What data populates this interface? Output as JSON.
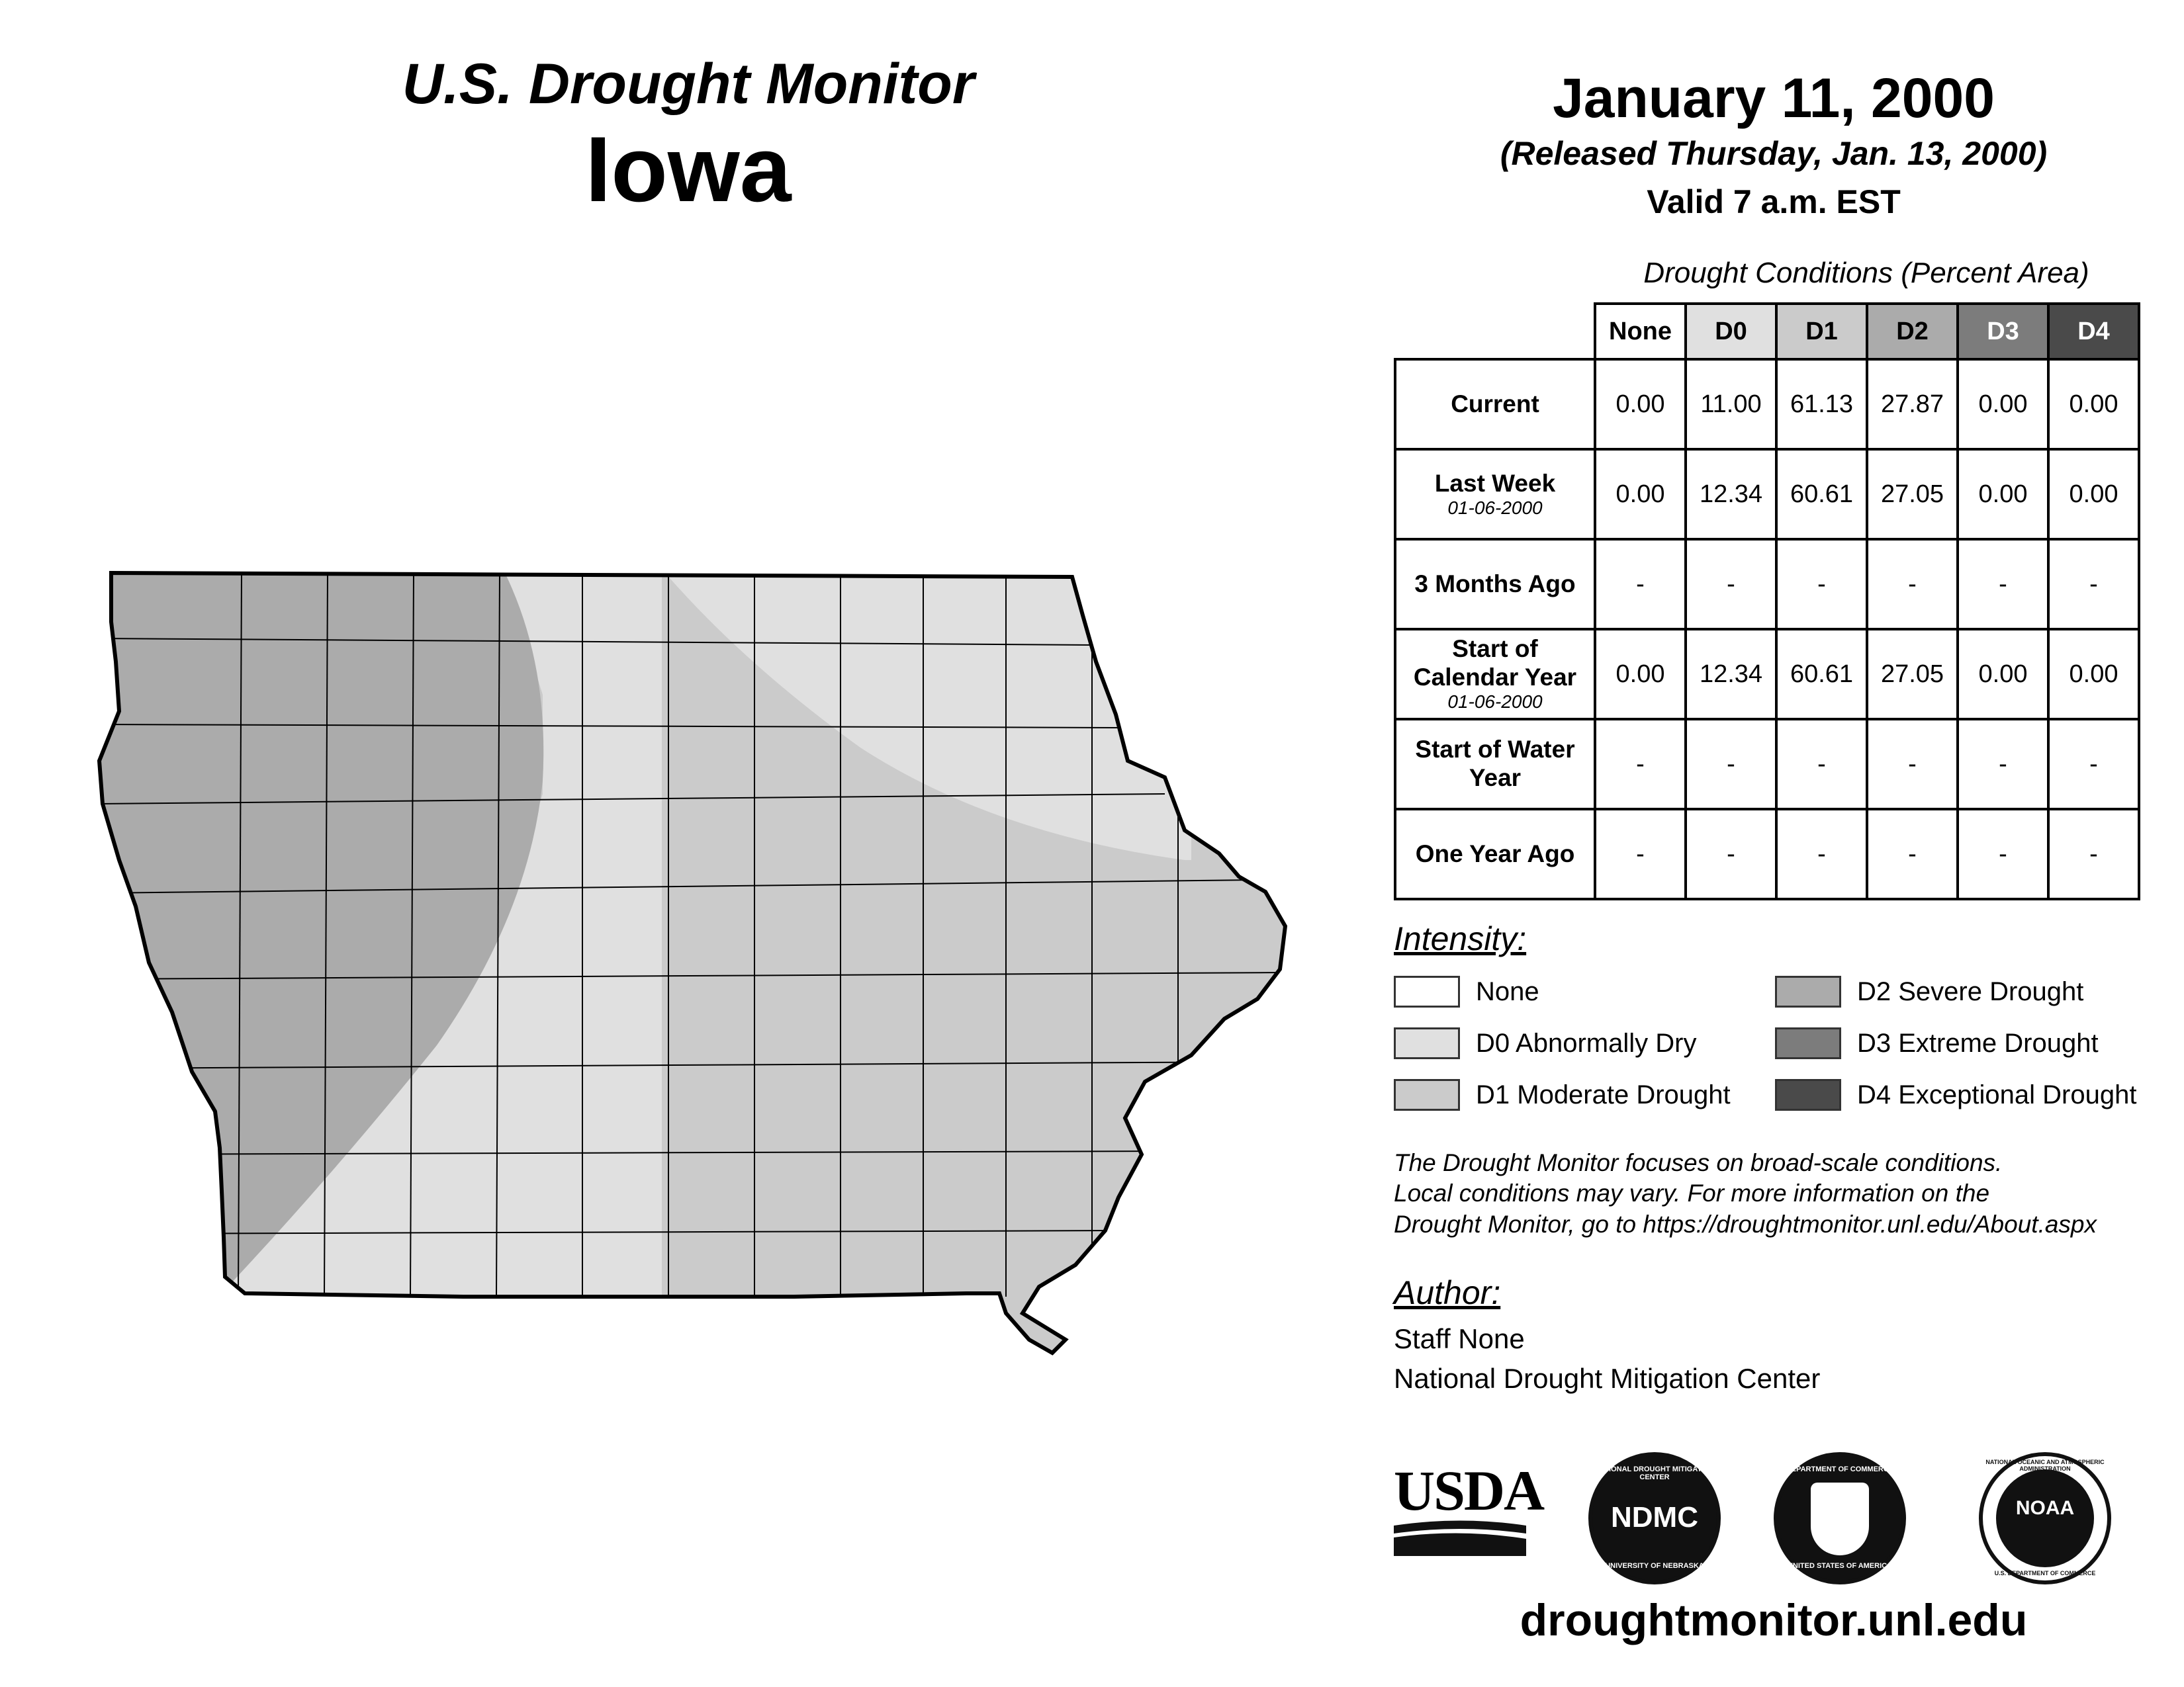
{
  "header": {
    "monitor_title": "U.S. Drought Monitor",
    "state": "Iowa",
    "date": "January 11, 2000",
    "released": "(Released Thursday, Jan. 13, 2000)",
    "valid": "Valid 7 a.m. EST"
  },
  "table": {
    "title": "Drought Conditions (Percent Area)",
    "columns": [
      "None",
      "D0",
      "D1",
      "D2",
      "D3",
      "D4"
    ],
    "rows": [
      {
        "label": "Current",
        "sublabel": "",
        "values": [
          "0.00",
          "11.00",
          "61.13",
          "27.87",
          "0.00",
          "0.00"
        ]
      },
      {
        "label": "Last Week",
        "sublabel": "01-06-2000",
        "values": [
          "0.00",
          "12.34",
          "60.61",
          "27.05",
          "0.00",
          "0.00"
        ]
      },
      {
        "label": "3 Months Ago",
        "sublabel": "",
        "values": [
          "-",
          "-",
          "-",
          "-",
          "-",
          "-"
        ]
      },
      {
        "label": "Start of Calendar Year",
        "sublabel": "01-06-2000",
        "values": [
          "0.00",
          "12.34",
          "60.61",
          "27.05",
          "0.00",
          "0.00"
        ]
      },
      {
        "label": "Start of Water Year",
        "sublabel": "",
        "values": [
          "-",
          "-",
          "-",
          "-",
          "-",
          "-"
        ]
      },
      {
        "label": "One Year Ago",
        "sublabel": "",
        "values": [
          "-",
          "-",
          "-",
          "-",
          "-",
          "-"
        ]
      }
    ]
  },
  "legend": {
    "title": "Intensity:",
    "items": [
      {
        "label": "None",
        "color": "#ffffff"
      },
      {
        "label": "D0 Abnormally Dry",
        "color": "#e0e0e0"
      },
      {
        "label": "D1 Moderate Drought",
        "color": "#cbcbcb"
      },
      {
        "label": "D2 Severe Drought",
        "color": "#ababab"
      },
      {
        "label": "D3 Extreme Drought",
        "color": "#7c7c7c"
      },
      {
        "label": "D4 Exceptional Drought",
        "color": "#4a4a4a"
      }
    ]
  },
  "notes": {
    "line1": "The Drought Monitor focuses on broad-scale conditions.",
    "line2": "Local conditions may vary. For more information on the",
    "line3": "Drought Monitor, go to https://droughtmonitor.unl.edu/About.aspx"
  },
  "author": {
    "label": "Author:",
    "name": "Staff None",
    "organization": "National Drought Mitigation Center"
  },
  "logos": {
    "usda": "USDA",
    "ndmc": "NDMC",
    "ndmc_ring_top": "NATIONAL DROUGHT MITIGATION CENTER",
    "ndmc_ring_bottom": "UNIVERSITY OF NEBRASKA",
    "commerce_ring_top": "DEPARTMENT OF COMMERCE",
    "commerce_ring_bottom": "UNITED STATES OF AMERICA",
    "noaa": "NOAA",
    "noaa_ring_top": "NATIONAL OCEANIC AND ATMOSPHERIC ADMINISTRATION",
    "noaa_ring_bottom": "U.S. DEPARTMENT OF COMMERCE"
  },
  "website": "droughtmonitor.unl.edu",
  "map": {
    "state": "Iowa",
    "zones": [
      {
        "category": "D2",
        "color": "#ababab"
      },
      {
        "category": "D1",
        "color": "#cbcbcb"
      },
      {
        "category": "D0",
        "color": "#e0e0e0"
      }
    ]
  }
}
